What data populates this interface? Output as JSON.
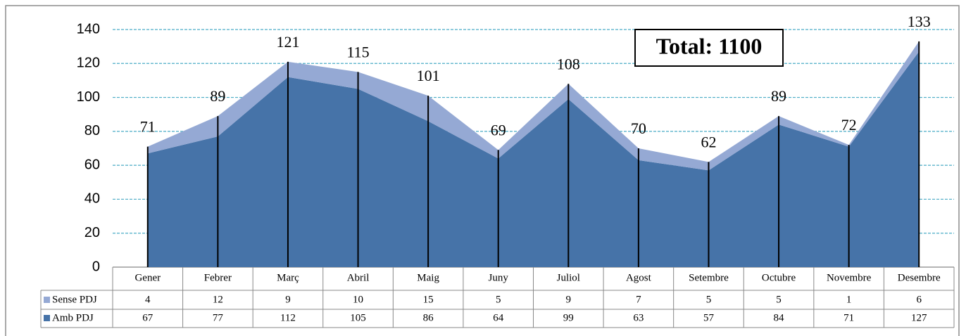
{
  "chart_data": {
    "type": "stacked_area",
    "annotation": "Total: 1100",
    "categories": [
      "Gener",
      "Febrer",
      "Març",
      "Abril",
      "Maig",
      "Juny",
      "Juliol",
      "Agost",
      "Setembre",
      "Octubre",
      "Novembre",
      "Desembre"
    ],
    "series": [
      {
        "name": "Sense PDJ",
        "color": "#95a9d4",
        "values": [
          4,
          12,
          9,
          10,
          15,
          5,
          9,
          7,
          5,
          5,
          1,
          6
        ]
      },
      {
        "name": "Amb PDJ",
        "color": "#4673a8",
        "values": [
          67,
          77,
          112,
          105,
          86,
          64,
          99,
          63,
          57,
          84,
          71,
          127
        ]
      }
    ],
    "totals": [
      71,
      89,
      121,
      115,
      101,
      69,
      108,
      70,
      62,
      89,
      72,
      133
    ],
    "ylim": [
      0,
      140
    ],
    "yticks": [
      0,
      20,
      40,
      60,
      80,
      100,
      120,
      140
    ],
    "grid": true,
    "grid_color": "#4bacc6"
  }
}
